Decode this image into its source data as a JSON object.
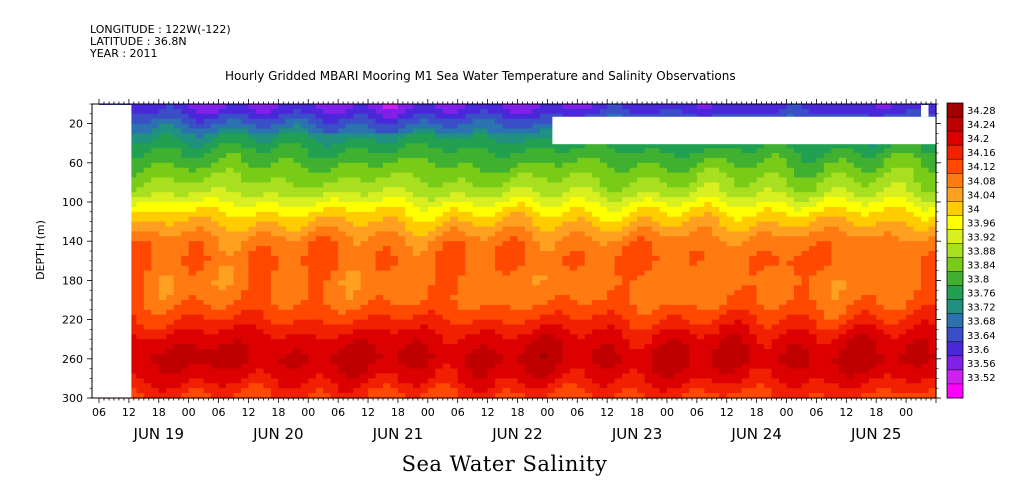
{
  "header": {
    "longitude": "LONGITUDE : 122W(-122)",
    "latitude": "LATITUDE : 36.8N",
    "year": "YEAR : 2011"
  },
  "chart_data": {
    "type": "heatmap",
    "title": "Hourly Gridded MBARI Mooring M1 Sea Water Temperature and Salinity Observations",
    "xlabel": "",
    "ylabel": "DEPTH (m)",
    "bottom_title": "Sea Water Salinity",
    "x_hour_ticks": [
      "06",
      "12",
      "18",
      "00",
      "06",
      "12",
      "18",
      "00",
      "06",
      "12",
      "18",
      "00",
      "06",
      "12",
      "18",
      "00",
      "06",
      "12",
      "18",
      "00",
      "06",
      "12",
      "18",
      "00",
      "06",
      "12",
      "18",
      "00"
    ],
    "x_day_labels": [
      "JUN 19",
      "JUN 20",
      "JUN 21",
      "JUN 22",
      "JUN 23",
      "JUN 24",
      "JUN 25"
    ],
    "x_range_hours": [
      0,
      168
    ],
    "y_ticks": [
      20,
      60,
      100,
      140,
      180,
      220,
      260,
      300
    ],
    "y_range": [
      0,
      300
    ],
    "y_reversed": true,
    "colorbar_levels": [
      "34.28",
      "34.24",
      "34.2",
      "34.16",
      "34.12",
      "34.08",
      "34.04",
      "34",
      "33.96",
      "33.92",
      "33.88",
      "33.84",
      "33.8",
      "33.76",
      "33.72",
      "33.68",
      "33.64",
      "33.6",
      "33.56",
      "33.52"
    ],
    "colorbar_colors": [
      "#a00000",
      "#c00000",
      "#dd0000",
      "#f02000",
      "#ff4800",
      "#ff7a10",
      "#ffa020",
      "#ffcc00",
      "#ffff00",
      "#d8f020",
      "#a8e020",
      "#78cc18",
      "#40b030",
      "#20a050",
      "#209080",
      "#2a72b0",
      "#3a4ec8",
      "#4828d8",
      "#8020e8",
      "#d020f0",
      "#ff00ff"
    ],
    "depth_profile": [
      {
        "depth": 5,
        "salinity": 33.62
      },
      {
        "depth": 20,
        "salinity": 33.7
      },
      {
        "depth": 35,
        "salinity": 33.76
      },
      {
        "depth": 50,
        "salinity": 33.81
      },
      {
        "depth": 70,
        "salinity": 33.86
      },
      {
        "depth": 90,
        "salinity": 33.91
      },
      {
        "depth": 110,
        "salinity": 34.0
      },
      {
        "depth": 125,
        "salinity": 34.05
      },
      {
        "depth": 140,
        "salinity": 34.1
      },
      {
        "depth": 160,
        "salinity": 34.12
      },
      {
        "depth": 180,
        "salinity": 34.1
      },
      {
        "depth": 200,
        "salinity": 34.11
      },
      {
        "depth": 220,
        "salinity": 34.16
      },
      {
        "depth": 240,
        "salinity": 34.22
      },
      {
        "depth": 260,
        "salinity": 34.25
      },
      {
        "depth": 280,
        "salinity": 34.21
      },
      {
        "depth": 300,
        "salinity": 34.15
      }
    ],
    "missing_regions": [
      {
        "t_start": 0,
        "t_end": 6.5,
        "depth_start": 0,
        "depth_end": 300
      },
      {
        "t_start": 91,
        "t_end": 168,
        "depth_start": 13,
        "depth_end": 41
      },
      {
        "t_start": 165,
        "t_end": 166.5,
        "depth_start": 0,
        "depth_end": 13
      }
    ]
  }
}
